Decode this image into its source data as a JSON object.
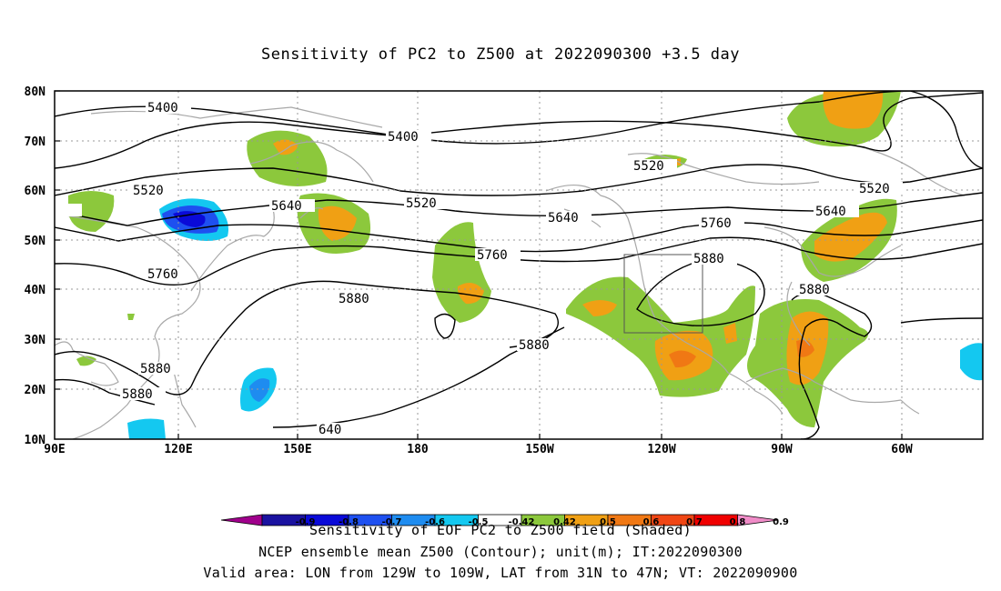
{
  "title": "Sensitivity of PC2 to Z500 at 2022090300 +3.5 day",
  "lat_labels": [
    "80N",
    "70N",
    "60N",
    "50N",
    "40N",
    "30N",
    "20N",
    "10N"
  ],
  "lon_labels": [
    "90E",
    "120E",
    "150E",
    "180",
    "150W",
    "120W",
    "90W",
    "60W"
  ],
  "contour_labels": [
    "5400",
    "5400",
    "5520",
    "5520",
    "5520",
    "5520",
    "5640",
    "5640",
    "5640",
    "5760",
    "5760",
    "5760",
    "5880",
    "5880",
    "5880",
    "5880",
    "5880",
    "5880",
    "640"
  ],
  "colorbar": {
    "labels": [
      "-0.9",
      "-0.8",
      "-0.7",
      "-0.6",
      "-0.5",
      "-0.42",
      "0.42",
      "0.5",
      "0.6",
      "0.7",
      "0.8",
      "0.9"
    ],
    "colors": [
      "#a0008c",
      "#1a12a0",
      "#0a0ad8",
      "#1e50f0",
      "#1e8cf0",
      "#14c8f0",
      "#ffffff",
      "#8cc83c",
      "#f0a014",
      "#f07814",
      "#f04614",
      "#f00000",
      "#f08cc8"
    ]
  },
  "footer": {
    "line1": "Sensitivity of EOF PC2 to Z500 field (Shaded)",
    "line2": "NCEP ensemble mean Z500 (Contour); unit(m); IT:2022090300",
    "line3": "Valid area: LON from 129W to 109W, LAT from 31N to 47N; VT: 2022090900"
  }
}
